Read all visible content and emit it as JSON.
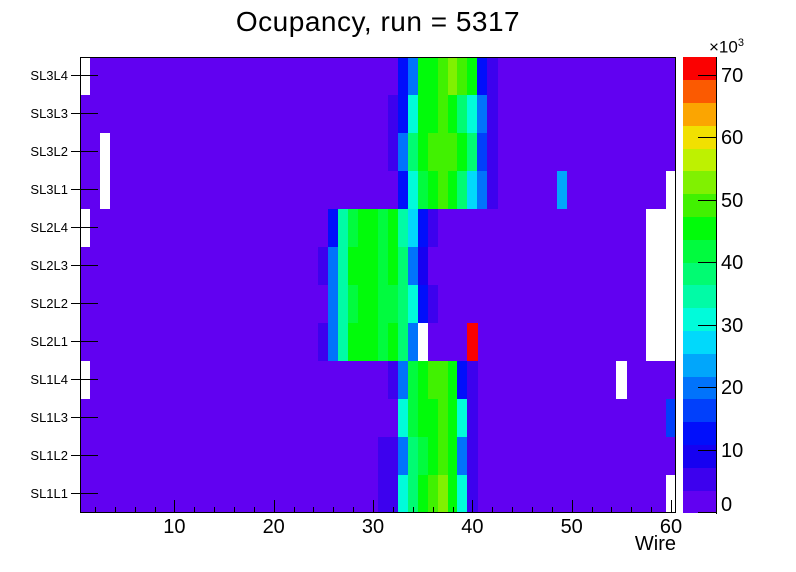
{
  "title": "Ocupancy, run = 5317",
  "chart_data": {
    "type": "heatmap",
    "title": "Ocupancy, run = 5317",
    "x_axis": {
      "title": "Wire",
      "min": 0.5,
      "max": 60.5,
      "n_bins": 60,
      "major_ticks": [
        10,
        20,
        30,
        40,
        50,
        60
      ],
      "minor_tick_step": 2
    },
    "z_axis": {
      "exponent_base": "×10",
      "exponent_power": "3",
      "ticks": [
        0,
        10,
        20,
        30,
        40,
        50,
        60,
        70
      ],
      "min_value_k": 0,
      "max_value_k": 73,
      "unit": "counts ×10³"
    },
    "palette_low_to_high": [
      "#6101f1",
      "#3d01ee",
      "#1601f1",
      "#010ffb",
      "#0140fb",
      "#0173fb",
      "#01a6fb",
      "#01d9fb",
      "#01fbda",
      "#01fba6",
      "#01fb72",
      "#01fb3e",
      "#01fb0a",
      "#41f101",
      "#80f101",
      "#bef101",
      "#f1e001",
      "#fba501",
      "#fb5a01",
      "#fb0101"
    ],
    "empty_bin_color": "#ffffff",
    "background_value_k": 2.5,
    "empty_bin_value": -1,
    "note": "cells map wire number to occupancy in units of 10^3; wires not listed have background_value_k; -1 = empty (white) bin",
    "rows_top_to_bottom": [
      {
        "label": "SL3L4",
        "cells": {
          "1": -1,
          "33": 13,
          "34": 20,
          "35": 44,
          "36": 46,
          "37": 50,
          "38": 53,
          "39": 50,
          "40": 46,
          "41": 13,
          "42": 7
        }
      },
      {
        "label": "SL3L3",
        "cells": {
          "32": 7,
          "33": 13,
          "34": 31,
          "35": 44,
          "36": 47,
          "37": 50,
          "38": 47,
          "39": 38,
          "40": 31,
          "41": 20,
          "42": 7
        }
      },
      {
        "label": "SL3L2",
        "cells": {
          "3": -1,
          "32": 7,
          "33": 20,
          "34": 38,
          "35": 44,
          "36": 48,
          "37": 51,
          "38": 48,
          "39": 44,
          "40": 38,
          "41": 16,
          "42": 7
        }
      },
      {
        "label": "SL3L1",
        "cells": {
          "3": -1,
          "33": 13,
          "34": 31,
          "35": 42,
          "36": 46,
          "37": 49,
          "38": 44,
          "39": 38,
          "40": 27,
          "41": 20,
          "42": 7,
          "49": 22,
          "60": -1
        }
      },
      {
        "label": "SL2L4",
        "cells": {
          "1": -1,
          "26": 13,
          "27": 33,
          "28": 42,
          "29": 45,
          "30": 44,
          "31": 42,
          "32": 44,
          "33": 36,
          "34": 29,
          "35": 13,
          "36": 7,
          "58": -1,
          "59": -1,
          "60": -1
        }
      },
      {
        "label": "SL2L3",
        "cells": {
          "25": 7,
          "26": 20,
          "27": 35,
          "28": 44,
          "29": 46,
          "30": 44,
          "31": 42,
          "32": 44,
          "33": 38,
          "34": 20,
          "35": 10,
          "58": -1,
          "59": -1,
          "60": -1
        }
      },
      {
        "label": "SL2L2",
        "cells": {
          "26": 20,
          "27": 33,
          "28": 42,
          "29": 45,
          "30": 44,
          "31": 41,
          "32": 43,
          "33": 37,
          "34": 30,
          "35": 13,
          "36": 7,
          "58": -1,
          "59": -1,
          "60": -1
        }
      },
      {
        "label": "SL2L1",
        "cells": {
          "25": 7,
          "26": 20,
          "27": 36,
          "28": 44,
          "29": 46,
          "30": 45,
          "31": 42,
          "32": 44,
          "33": 37,
          "34": 20,
          "35": -1,
          "40": 71,
          "58": -1,
          "59": -1,
          "60": -1
        }
      },
      {
        "label": "SL1L4",
        "cells": {
          "1": -1,
          "32": 7,
          "33": 20,
          "34": 42,
          "35": 44,
          "36": 48,
          "37": 51,
          "38": 44,
          "39": 13,
          "40": 7,
          "55": -1
        }
      },
      {
        "label": "SL1L3",
        "cells": {
          "33": 31,
          "34": 42,
          "35": 44,
          "36": 46,
          "37": 49,
          "38": 44,
          "39": 31,
          "40": 7,
          "60": 16
        }
      },
      {
        "label": "SL1L2",
        "cells": {
          "31": 7,
          "32": 7,
          "33": 20,
          "34": 40,
          "35": 43,
          "36": 47,
          "37": 50,
          "38": 44,
          "39": 20,
          "40": 7
        }
      },
      {
        "label": "SL1L1",
        "cells": {
          "31": 7,
          "32": 7,
          "33": 31,
          "34": 40,
          "35": 44,
          "36": 48,
          "37": 52,
          "38": 44,
          "39": 31,
          "40": 7,
          "60": -1
        }
      }
    ]
  }
}
